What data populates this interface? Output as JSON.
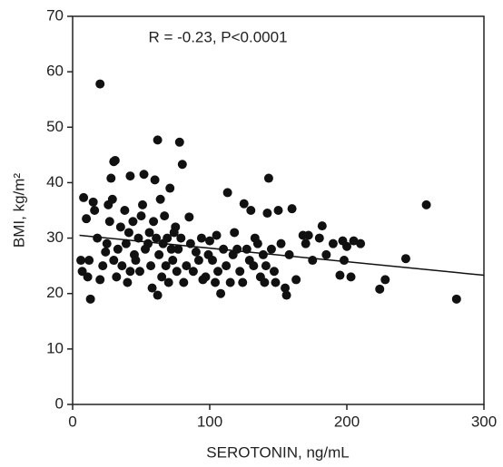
{
  "chart_data": {
    "type": "scatter",
    "annotation": "R = -0.23, P<0.0001",
    "x_label": "SEROTONIN, ng/mL",
    "y_label": "BMI, kg/m²",
    "xlim": [
      0,
      300
    ],
    "xticks": [
      0,
      100,
      200,
      300
    ],
    "ylim": [
      0,
      70
    ],
    "yticks": [
      0,
      10,
      20,
      30,
      40,
      50,
      60,
      70
    ],
    "color": "#111111",
    "x": [
      20,
      62,
      78,
      30,
      31,
      80,
      42,
      52,
      60,
      143,
      258,
      280,
      243,
      228,
      224,
      210,
      205,
      200,
      197,
      203,
      195,
      198,
      182,
      180,
      172,
      175,
      168,
      160,
      150,
      142,
      155,
      156,
      148,
      140,
      133,
      130,
      125,
      113,
      118,
      110,
      105,
      100,
      102,
      104,
      108,
      95,
      90,
      85,
      75,
      72,
      68,
      65,
      62,
      58,
      55,
      50,
      48,
      45,
      42,
      40,
      38,
      35,
      33,
      30,
      28,
      27,
      25,
      22,
      20,
      18,
      15,
      12,
      10,
      8,
      7,
      6,
      13,
      11,
      16,
      24,
      26,
      29,
      32,
      36,
      39,
      41,
      44,
      46,
      49,
      51,
      53,
      56,
      57,
      59,
      61,
      63,
      64,
      66,
      67,
      69,
      70,
      71,
      73,
      74,
      76,
      77,
      79,
      81,
      83,
      86,
      88,
      92,
      94,
      97,
      99,
      106,
      112,
      115,
      117,
      120,
      122,
      124,
      127,
      129,
      132,
      135,
      137,
      139,
      141,
      145,
      147,
      152,
      158,
      163,
      170,
      185,
      190
    ],
    "y": [
      57.8,
      47.7,
      47.3,
      43.8,
      44,
      43.3,
      41.2,
      41.5,
      40.5,
      40.8,
      36,
      19,
      26.3,
      22.5,
      20.8,
      29,
      29.5,
      28.5,
      29.5,
      23,
      23.3,
      26,
      32.2,
      30,
      30.5,
      26,
      30.5,
      35.3,
      35,
      34.5,
      21,
      19.7,
      22,
      22,
      30,
      35,
      36.2,
      38.2,
      31,
      28,
      30.5,
      29.5,
      26,
      22,
      20,
      22.5,
      27.5,
      33.8,
      32,
      28,
      25,
      23,
      19.7,
      21,
      29,
      34,
      30,
      27,
      24,
      22,
      35,
      32,
      28,
      26,
      40.8,
      33,
      29,
      25,
      22.5,
      30,
      36.5,
      26,
      33.5,
      37.3,
      24,
      26,
      19,
      23,
      35,
      27.5,
      36,
      37,
      23,
      25,
      29,
      31,
      33,
      26,
      24,
      36,
      28,
      31,
      25,
      33,
      30,
      27,
      37,
      29,
      34,
      30,
      22,
      39,
      26,
      31,
      24,
      28,
      30,
      22,
      25,
      29,
      24,
      26,
      30,
      23,
      27,
      24,
      25,
      22,
      27,
      28,
      24,
      22,
      28,
      26,
      25,
      29,
      23,
      27,
      25,
      28,
      24,
      29,
      27,
      22.5,
      29,
      27,
      29
    ],
    "trend_line": {
      "x": [
        5,
        300
      ],
      "y": [
        30.5,
        23.3
      ]
    }
  }
}
